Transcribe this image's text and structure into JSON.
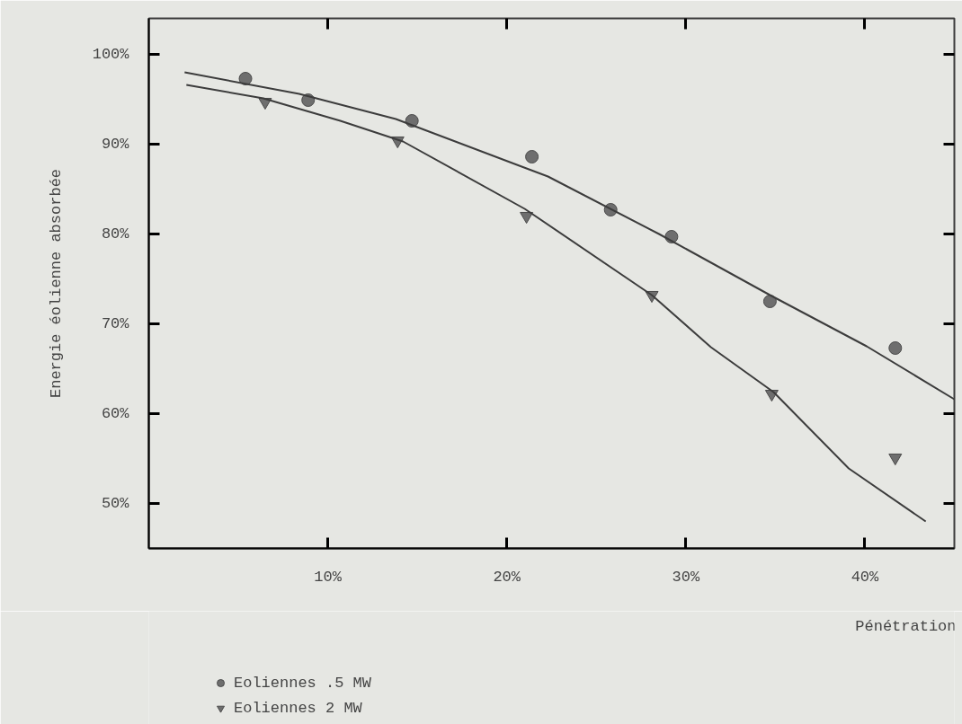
{
  "chart_data": {
    "type": "scatter",
    "xlabel": "Pénétration",
    "ylabel": "Energie éolienne absorbée",
    "xlim": [
      0,
      45
    ],
    "ylim": [
      45,
      104
    ],
    "xticks": [
      {
        "value": 10,
        "label": "10%"
      },
      {
        "value": 20,
        "label": "20%"
      },
      {
        "value": 30,
        "label": "30%"
      },
      {
        "value": 40,
        "label": "40%"
      }
    ],
    "yticks": [
      {
        "value": 50,
        "label": "50%"
      },
      {
        "value": 60,
        "label": "60%"
      },
      {
        "value": 70,
        "label": "70%"
      },
      {
        "value": 80,
        "label": "80%"
      },
      {
        "value": 90,
        "label": "90%"
      },
      {
        "value": 100,
        "label": "100%"
      }
    ],
    "grid": false,
    "legend": "bottom left",
    "series": [
      {
        "name": "Eoliennes .5 MW",
        "marker": "circle",
        "color": "#6e6e6e",
        "x": [
          5.4,
          8.9,
          14.7,
          21.4,
          25.8,
          29.2,
          34.7,
          41.7
        ],
        "values": [
          97.3,
          94.9,
          92.6,
          88.6,
          82.7,
          79.7,
          72.5,
          67.3
        ]
      },
      {
        "name": "Eoliennes 2 MW",
        "marker": "triangle",
        "color": "#6e6e6e",
        "x": [
          6.5,
          13.9,
          21.1,
          28.1,
          34.8,
          41.7
        ],
        "values": [
          94.7,
          90.4,
          82.0,
          73.2,
          62.2,
          55.1
        ]
      },
      {
        "type": "line",
        "marker": "none",
        "color": "#3c3c3c",
        "x": [
          2.0,
          8.4,
          13.8,
          20.7,
          22.3,
          28.5,
          34.7,
          40.1,
          45.0
        ],
        "values": [
          98.0,
          95.6,
          92.8,
          87.6,
          86.4,
          80.0,
          73.2,
          67.5,
          61.6
        ]
      },
      {
        "type": "line",
        "color": "#3c3c3c",
        "x": [
          2.1,
          6.4,
          10.7,
          14.2,
          21.0,
          28.1,
          31.4,
          34.9,
          39.1,
          43.4
        ],
        "values": [
          96.6,
          95.1,
          92.6,
          90.3,
          82.8,
          73.2,
          67.4,
          62.4,
          53.9,
          48.0
        ]
      }
    ]
  }
}
